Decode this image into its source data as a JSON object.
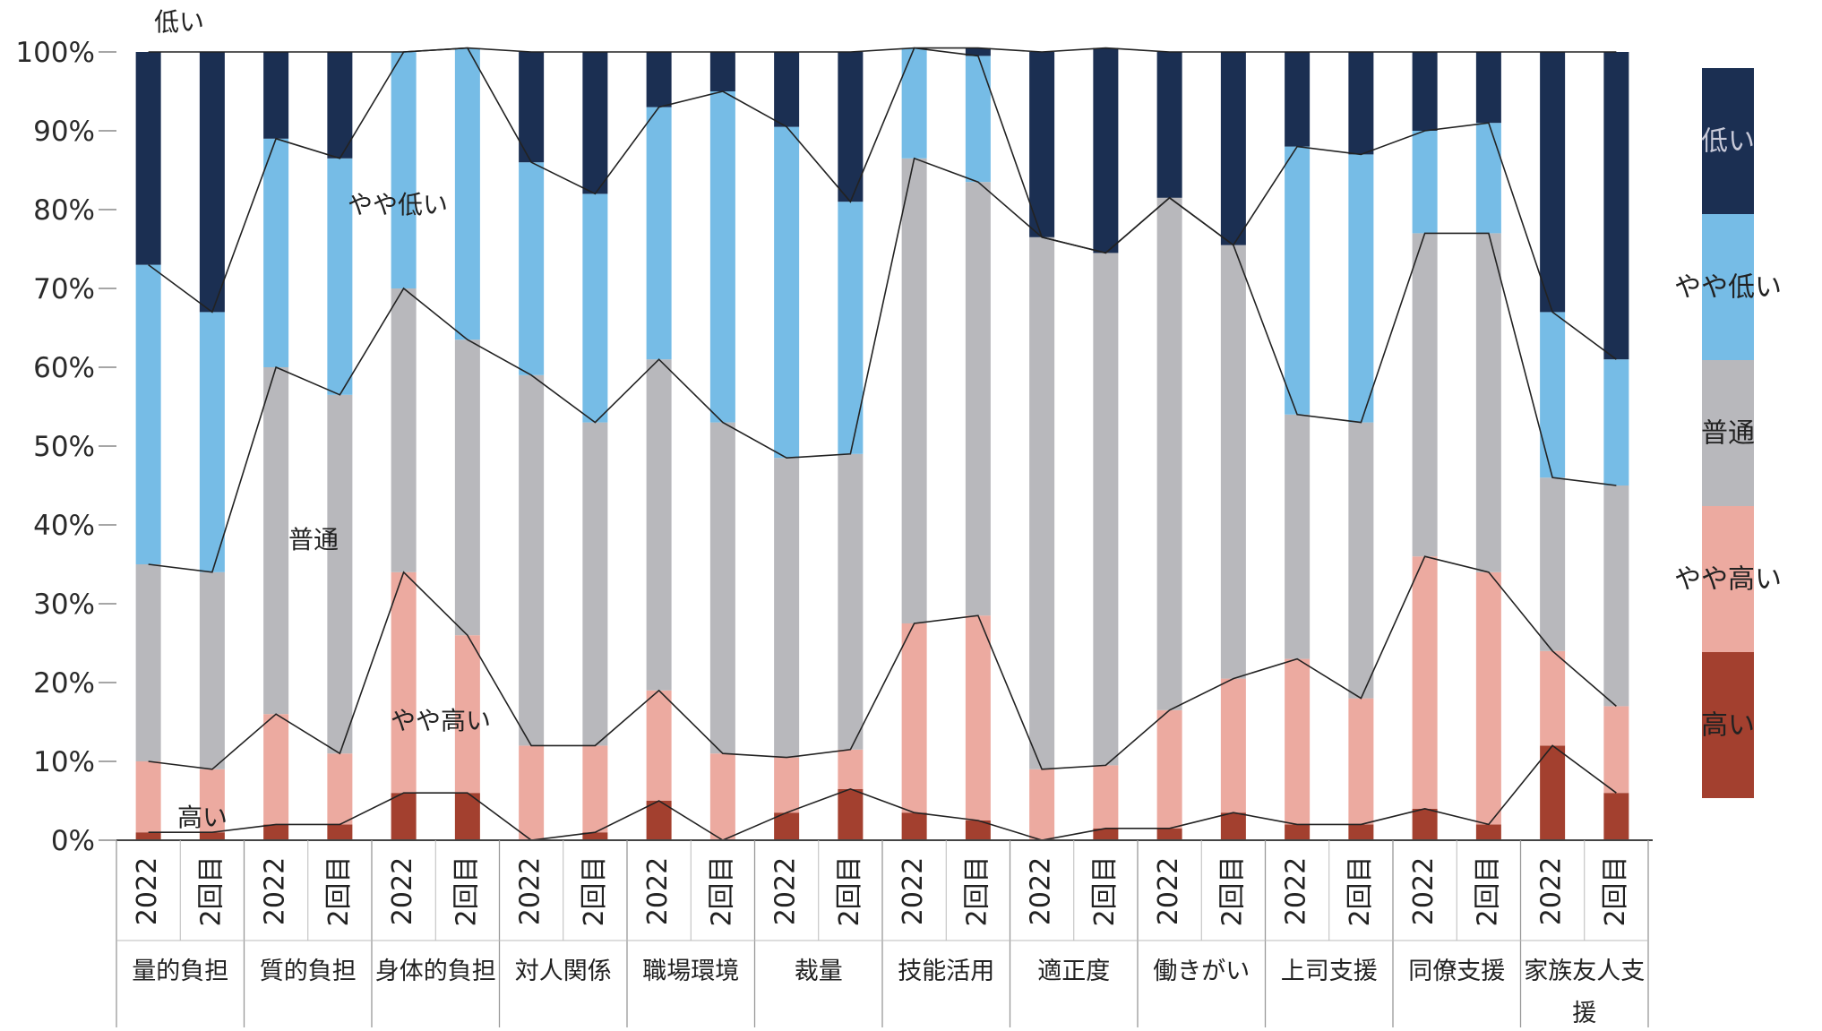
{
  "chart_data": {
    "type": "bar",
    "stacked": true,
    "percent": true,
    "y_axis": {
      "ylim": [
        0,
        100
      ],
      "ticks": [
        "0%",
        "10%",
        "20%",
        "30%",
        "40%",
        "50%",
        "60%",
        "70%",
        "80%",
        "90%",
        "100%"
      ]
    },
    "groups": [
      "量的負担",
      "質的負担",
      "身体的負担",
      "対人関係",
      "職場環境",
      "裁量",
      "技能活用",
      "適正度",
      "働きがい",
      "上司支援",
      "同僚支援",
      "家族友人支援"
    ],
    "sub_labels": [
      "2022",
      "2回目"
    ],
    "series": [
      {
        "name": "高い",
        "color": "#a3402f",
        "values": [
          1,
          1,
          2,
          2,
          6,
          6,
          0,
          1,
          5,
          0,
          3.5,
          6.5,
          3.5,
          2.5,
          0,
          1.5,
          1.5,
          3.5,
          2,
          2,
          4,
          2,
          12,
          6
        ]
      },
      {
        "name": "やや高い",
        "color": "#ecaaa0",
        "values": [
          9,
          8,
          14,
          9,
          28,
          20,
          12,
          11,
          14,
          11,
          7,
          5,
          24,
          26,
          9,
          8,
          15,
          17,
          21,
          16,
          32,
          32,
          12,
          11
        ]
      },
      {
        "name": "普通",
        "color": "#b8b8bc",
        "values": [
          25,
          25,
          44,
          45.5,
          36,
          37.5,
          47,
          41,
          42,
          42,
          38,
          37.5,
          59,
          55,
          67.5,
          65,
          65,
          55,
          31,
          35,
          41,
          43,
          22,
          28
        ]
      },
      {
        "name": "やや低い",
        "color": "#76bce6",
        "values": [
          38,
          33,
          29,
          30,
          30,
          37,
          27,
          29,
          32,
          42,
          42,
          32,
          14,
          16,
          0,
          0,
          0,
          0,
          34,
          34,
          13,
          14,
          21,
          16
        ]
      },
      {
        "name": "低い",
        "color": "#1b2f52",
        "values": [
          27,
          33,
          11,
          13.5,
          0,
          0,
          14,
          18,
          7,
          5,
          9.5,
          19,
          0,
          1,
          23.5,
          26,
          18.5,
          24.5,
          12,
          13,
          10,
          9,
          33,
          39
        ]
      }
    ],
    "inline_labels": [
      "低い",
      "やや低い",
      "普通",
      "やや高い",
      "高い"
    ],
    "legend": {
      "position": "right",
      "items": [
        "低い",
        "やや低い",
        "普通",
        "やや高い",
        "高い"
      ],
      "colors": [
        "#1b2f52",
        "#76bce6",
        "#b8b8bc",
        "#ecaaa0",
        "#a3402f"
      ]
    },
    "grid": false
  }
}
